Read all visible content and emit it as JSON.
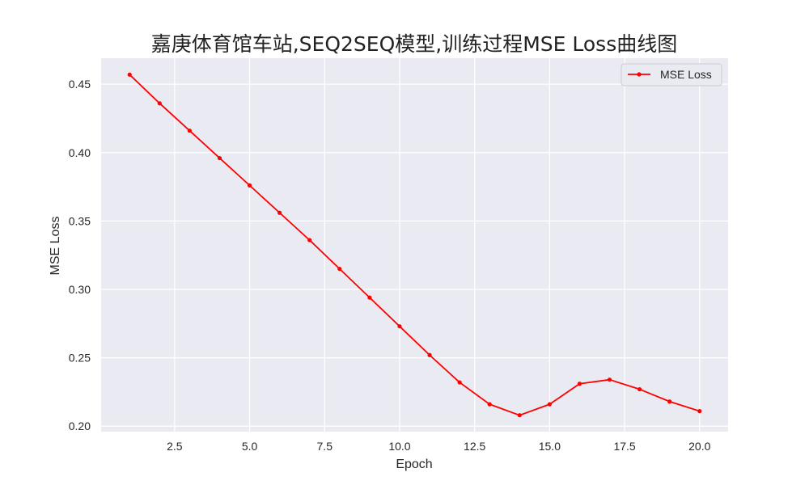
{
  "chart_data": {
    "type": "line",
    "title": "嘉庚体育馆车站,SEQ2SEQ模型,训练过程MSE Loss曲线图",
    "xlabel": "Epoch",
    "ylabel": "MSE Loss",
    "xlim": [
      0.05,
      20.95
    ],
    "ylim": [
      0.196,
      0.469
    ],
    "xticks": [
      2.5,
      5.0,
      7.5,
      10.0,
      12.5,
      15.0,
      17.5,
      20.0
    ],
    "xtick_labels": [
      "2.5",
      "5.0",
      "7.5",
      "10.0",
      "12.5",
      "15.0",
      "17.5",
      "20.0"
    ],
    "yticks": [
      0.2,
      0.25,
      0.3,
      0.35,
      0.4,
      0.45
    ],
    "ytick_labels": [
      "0.20",
      "0.25",
      "0.30",
      "0.35",
      "0.40",
      "0.45"
    ],
    "grid": true,
    "legend_position": "top-right",
    "colors": {
      "background": "#eaeaf2",
      "grid": "#ffffff",
      "line": "#ff0000"
    },
    "series": [
      {
        "name": "MSE Loss",
        "marker": "circle",
        "x": [
          1,
          2,
          3,
          4,
          5,
          6,
          7,
          8,
          9,
          10,
          11,
          12,
          13,
          14,
          15,
          16,
          17,
          18,
          19,
          20
        ],
        "values": [
          0.457,
          0.436,
          0.416,
          0.396,
          0.376,
          0.356,
          0.336,
          0.315,
          0.294,
          0.273,
          0.252,
          0.232,
          0.216,
          0.208,
          0.216,
          0.231,
          0.234,
          0.227,
          0.218,
          0.211
        ]
      }
    ]
  }
}
